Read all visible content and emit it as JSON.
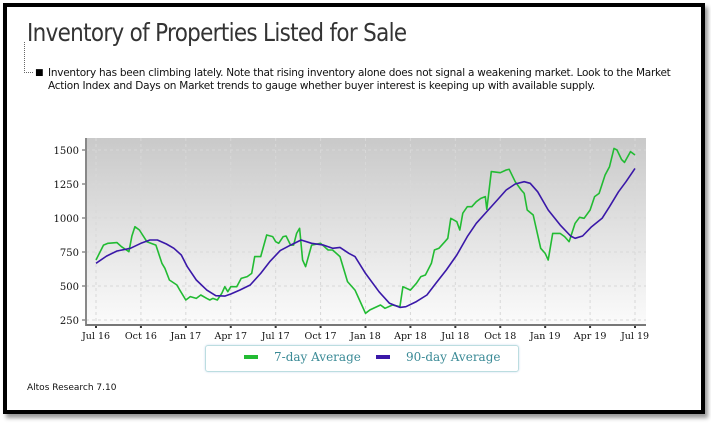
{
  "title": "Inventory of Properties Listed for Sale",
  "note": "Inventory has been climbing lately. Note that rising inventory alone does not signal a weakening market. Look to the Market Action Index and Days on Market trends to gauge whether buyer interest is keeping up with available supply.",
  "footer": "Altos Research 7.10",
  "chart_data": {
    "type": "line",
    "grid": true,
    "background": "gray-to-white gradient",
    "legend_position": "bottom",
    "ylim": [
      250,
      1500
    ],
    "yticks": [
      "250",
      "500",
      "750",
      "1000",
      "1250",
      "1500"
    ],
    "xlim": [
      "2016-07-01",
      "2019-07-01"
    ],
    "xticks": [
      {
        "date": "2016-07-01",
        "label": "Jul 16"
      },
      {
        "date": "2016-10-01",
        "label": "Oct 16"
      },
      {
        "date": "2017-01-01",
        "label": "Jan 17"
      },
      {
        "date": "2017-04-01",
        "label": "Apr 17"
      },
      {
        "date": "2017-07-01",
        "label": "Jul 17"
      },
      {
        "date": "2017-10-01",
        "label": "Oct 17"
      },
      {
        "date": "2018-01-01",
        "label": "Jan 18"
      },
      {
        "date": "2018-04-01",
        "label": "Apr 18"
      },
      {
        "date": "2018-07-01",
        "label": "Jul 18"
      },
      {
        "date": "2018-10-01",
        "label": "Oct 18"
      },
      {
        "date": "2019-01-01",
        "label": "Jan 19"
      },
      {
        "date": "2019-04-01",
        "label": "Apr 19"
      },
      {
        "date": "2019-07-01",
        "label": "Jul 19"
      }
    ],
    "series": [
      {
        "name": "7-day Average",
        "color": "#22bb33",
        "points": [
          [
            "2016-07-01",
            691
          ],
          [
            "2016-07-16",
            801
          ],
          [
            "2016-07-25",
            814
          ],
          [
            "2016-08-13",
            819
          ],
          [
            "2016-08-22",
            789
          ],
          [
            "2016-09-07",
            752
          ],
          [
            "2016-09-13",
            868
          ],
          [
            "2016-09-19",
            936
          ],
          [
            "2016-09-28",
            912
          ],
          [
            "2016-10-13",
            826
          ],
          [
            "2016-11-01",
            801
          ],
          [
            "2016-11-13",
            667
          ],
          [
            "2016-11-19",
            630
          ],
          [
            "2016-11-28",
            544
          ],
          [
            "2016-12-13",
            507
          ],
          [
            "2016-12-19",
            470
          ],
          [
            "2017-01-01",
            397
          ],
          [
            "2017-01-10",
            422
          ],
          [
            "2017-01-22",
            409
          ],
          [
            "2017-02-01",
            434
          ],
          [
            "2017-02-13",
            409
          ],
          [
            "2017-02-19",
            397
          ],
          [
            "2017-02-25",
            409
          ],
          [
            "2017-03-04",
            397
          ],
          [
            "2017-03-13",
            446
          ],
          [
            "2017-03-19",
            495
          ],
          [
            "2017-03-25",
            458
          ],
          [
            "2017-04-01",
            495
          ],
          [
            "2017-04-13",
            495
          ],
          [
            "2017-04-22",
            556
          ],
          [
            "2017-05-04",
            569
          ],
          [
            "2017-05-13",
            593
          ],
          [
            "2017-05-19",
            716
          ],
          [
            "2017-06-01",
            716
          ],
          [
            "2017-06-13",
            875
          ],
          [
            "2017-06-25",
            863
          ],
          [
            "2017-07-01",
            826
          ],
          [
            "2017-07-07",
            814
          ],
          [
            "2017-07-16",
            863
          ],
          [
            "2017-07-22",
            868
          ],
          [
            "2017-08-01",
            801
          ],
          [
            "2017-08-07",
            801
          ],
          [
            "2017-08-13",
            887
          ],
          [
            "2017-08-19",
            924
          ],
          [
            "2017-08-25",
            691
          ],
          [
            "2017-09-01",
            642
          ],
          [
            "2017-09-13",
            801
          ],
          [
            "2017-10-01",
            814
          ],
          [
            "2017-10-16",
            765
          ],
          [
            "2017-10-25",
            765
          ],
          [
            "2017-11-10",
            716
          ],
          [
            "2017-11-25",
            532
          ],
          [
            "2017-12-10",
            470
          ],
          [
            "2017-12-19",
            397
          ],
          [
            "2018-01-01",
            299
          ],
          [
            "2018-01-10",
            324
          ],
          [
            "2018-02-01",
            360
          ],
          [
            "2018-02-10",
            336
          ],
          [
            "2018-02-25",
            360
          ],
          [
            "2018-03-10",
            348
          ],
          [
            "2018-03-16",
            495
          ],
          [
            "2018-04-01",
            470
          ],
          [
            "2018-04-13",
            520
          ],
          [
            "2018-04-22",
            569
          ],
          [
            "2018-05-01",
            581
          ],
          [
            "2018-05-13",
            667
          ],
          [
            "2018-05-19",
            765
          ],
          [
            "2018-05-28",
            777
          ],
          [
            "2018-06-10",
            826
          ],
          [
            "2018-06-16",
            851
          ],
          [
            "2018-06-22",
            998
          ],
          [
            "2018-07-04",
            973
          ],
          [
            "2018-07-10",
            912
          ],
          [
            "2018-07-16",
            1035
          ],
          [
            "2018-07-25",
            1083
          ],
          [
            "2018-08-04",
            1083
          ],
          [
            "2018-08-13",
            1120
          ],
          [
            "2018-08-22",
            1144
          ],
          [
            "2018-09-01",
            1157
          ],
          [
            "2018-09-04",
            1064
          ],
          [
            "2018-09-13",
            1341
          ],
          [
            "2018-10-01",
            1333
          ],
          [
            "2018-10-13",
            1353
          ],
          [
            "2018-10-19",
            1358
          ],
          [
            "2018-11-01",
            1267
          ],
          [
            "2018-11-13",
            1206
          ],
          [
            "2018-11-19",
            1181
          ],
          [
            "2018-11-25",
            1059
          ],
          [
            "2018-12-07",
            1022
          ],
          [
            "2018-12-22",
            777
          ],
          [
            "2019-01-01",
            740
          ],
          [
            "2019-01-07",
            691
          ],
          [
            "2019-01-16",
            887
          ],
          [
            "2019-02-01",
            887
          ],
          [
            "2019-02-10",
            863
          ],
          [
            "2019-02-16",
            838
          ],
          [
            "2019-02-19",
            826
          ],
          [
            "2019-03-01",
            961
          ],
          [
            "2019-03-10",
            1005
          ],
          [
            "2019-03-19",
            998
          ],
          [
            "2019-04-01",
            1059
          ],
          [
            "2019-04-10",
            1157
          ],
          [
            "2019-04-19",
            1181
          ],
          [
            "2019-05-01",
            1316
          ],
          [
            "2019-05-10",
            1377
          ],
          [
            "2019-05-19",
            1512
          ],
          [
            "2019-05-25",
            1500
          ],
          [
            "2019-06-04",
            1431
          ],
          [
            "2019-06-10",
            1409
          ],
          [
            "2019-06-22",
            1488
          ],
          [
            "2019-07-01",
            1463
          ]
        ]
      },
      {
        "name": "90-day Average",
        "color": "#3a18a8",
        "points": [
          [
            "2016-07-01",
            667
          ],
          [
            "2016-07-22",
            720
          ],
          [
            "2016-08-13",
            757
          ],
          [
            "2016-09-10",
            777
          ],
          [
            "2016-10-01",
            814
          ],
          [
            "2016-10-19",
            838
          ],
          [
            "2016-11-04",
            838
          ],
          [
            "2016-11-22",
            809
          ],
          [
            "2016-12-07",
            777
          ],
          [
            "2016-12-22",
            728
          ],
          [
            "2017-01-04",
            642
          ],
          [
            "2017-01-22",
            544
          ],
          [
            "2017-02-13",
            470
          ],
          [
            "2017-03-01",
            429
          ],
          [
            "2017-03-19",
            426
          ],
          [
            "2017-04-01",
            441
          ],
          [
            "2017-04-19",
            470
          ],
          [
            "2017-05-10",
            507
          ],
          [
            "2017-06-01",
            593
          ],
          [
            "2017-06-19",
            679
          ],
          [
            "2017-07-10",
            760
          ],
          [
            "2017-08-01",
            801
          ],
          [
            "2017-08-22",
            838
          ],
          [
            "2017-09-13",
            814
          ],
          [
            "2017-10-07",
            801
          ],
          [
            "2017-10-25",
            777
          ],
          [
            "2017-11-10",
            784
          ],
          [
            "2017-11-28",
            740
          ],
          [
            "2017-12-10",
            716
          ],
          [
            "2018-01-01",
            593
          ],
          [
            "2018-01-28",
            458
          ],
          [
            "2018-02-19",
            373
          ],
          [
            "2018-03-10",
            343
          ],
          [
            "2018-03-22",
            348
          ],
          [
            "2018-04-13",
            385
          ],
          [
            "2018-05-04",
            434
          ],
          [
            "2018-05-22",
            520
          ],
          [
            "2018-06-13",
            618
          ],
          [
            "2018-07-04",
            728
          ],
          [
            "2018-07-25",
            863
          ],
          [
            "2018-08-13",
            961
          ],
          [
            "2018-09-04",
            1047
          ],
          [
            "2018-09-25",
            1132
          ],
          [
            "2018-10-13",
            1206
          ],
          [
            "2018-11-01",
            1250
          ],
          [
            "2018-11-19",
            1267
          ],
          [
            "2018-12-01",
            1255
          ],
          [
            "2018-12-16",
            1193
          ],
          [
            "2019-01-07",
            1059
          ],
          [
            "2019-02-01",
            949
          ],
          [
            "2019-02-22",
            868
          ],
          [
            "2019-03-01",
            851
          ],
          [
            "2019-03-16",
            868
          ],
          [
            "2019-04-04",
            936
          ],
          [
            "2019-04-25",
            998
          ],
          [
            "2019-05-10",
            1083
          ],
          [
            "2019-05-28",
            1193
          ],
          [
            "2019-06-13",
            1267
          ],
          [
            "2019-07-01",
            1365
          ]
        ]
      }
    ]
  }
}
